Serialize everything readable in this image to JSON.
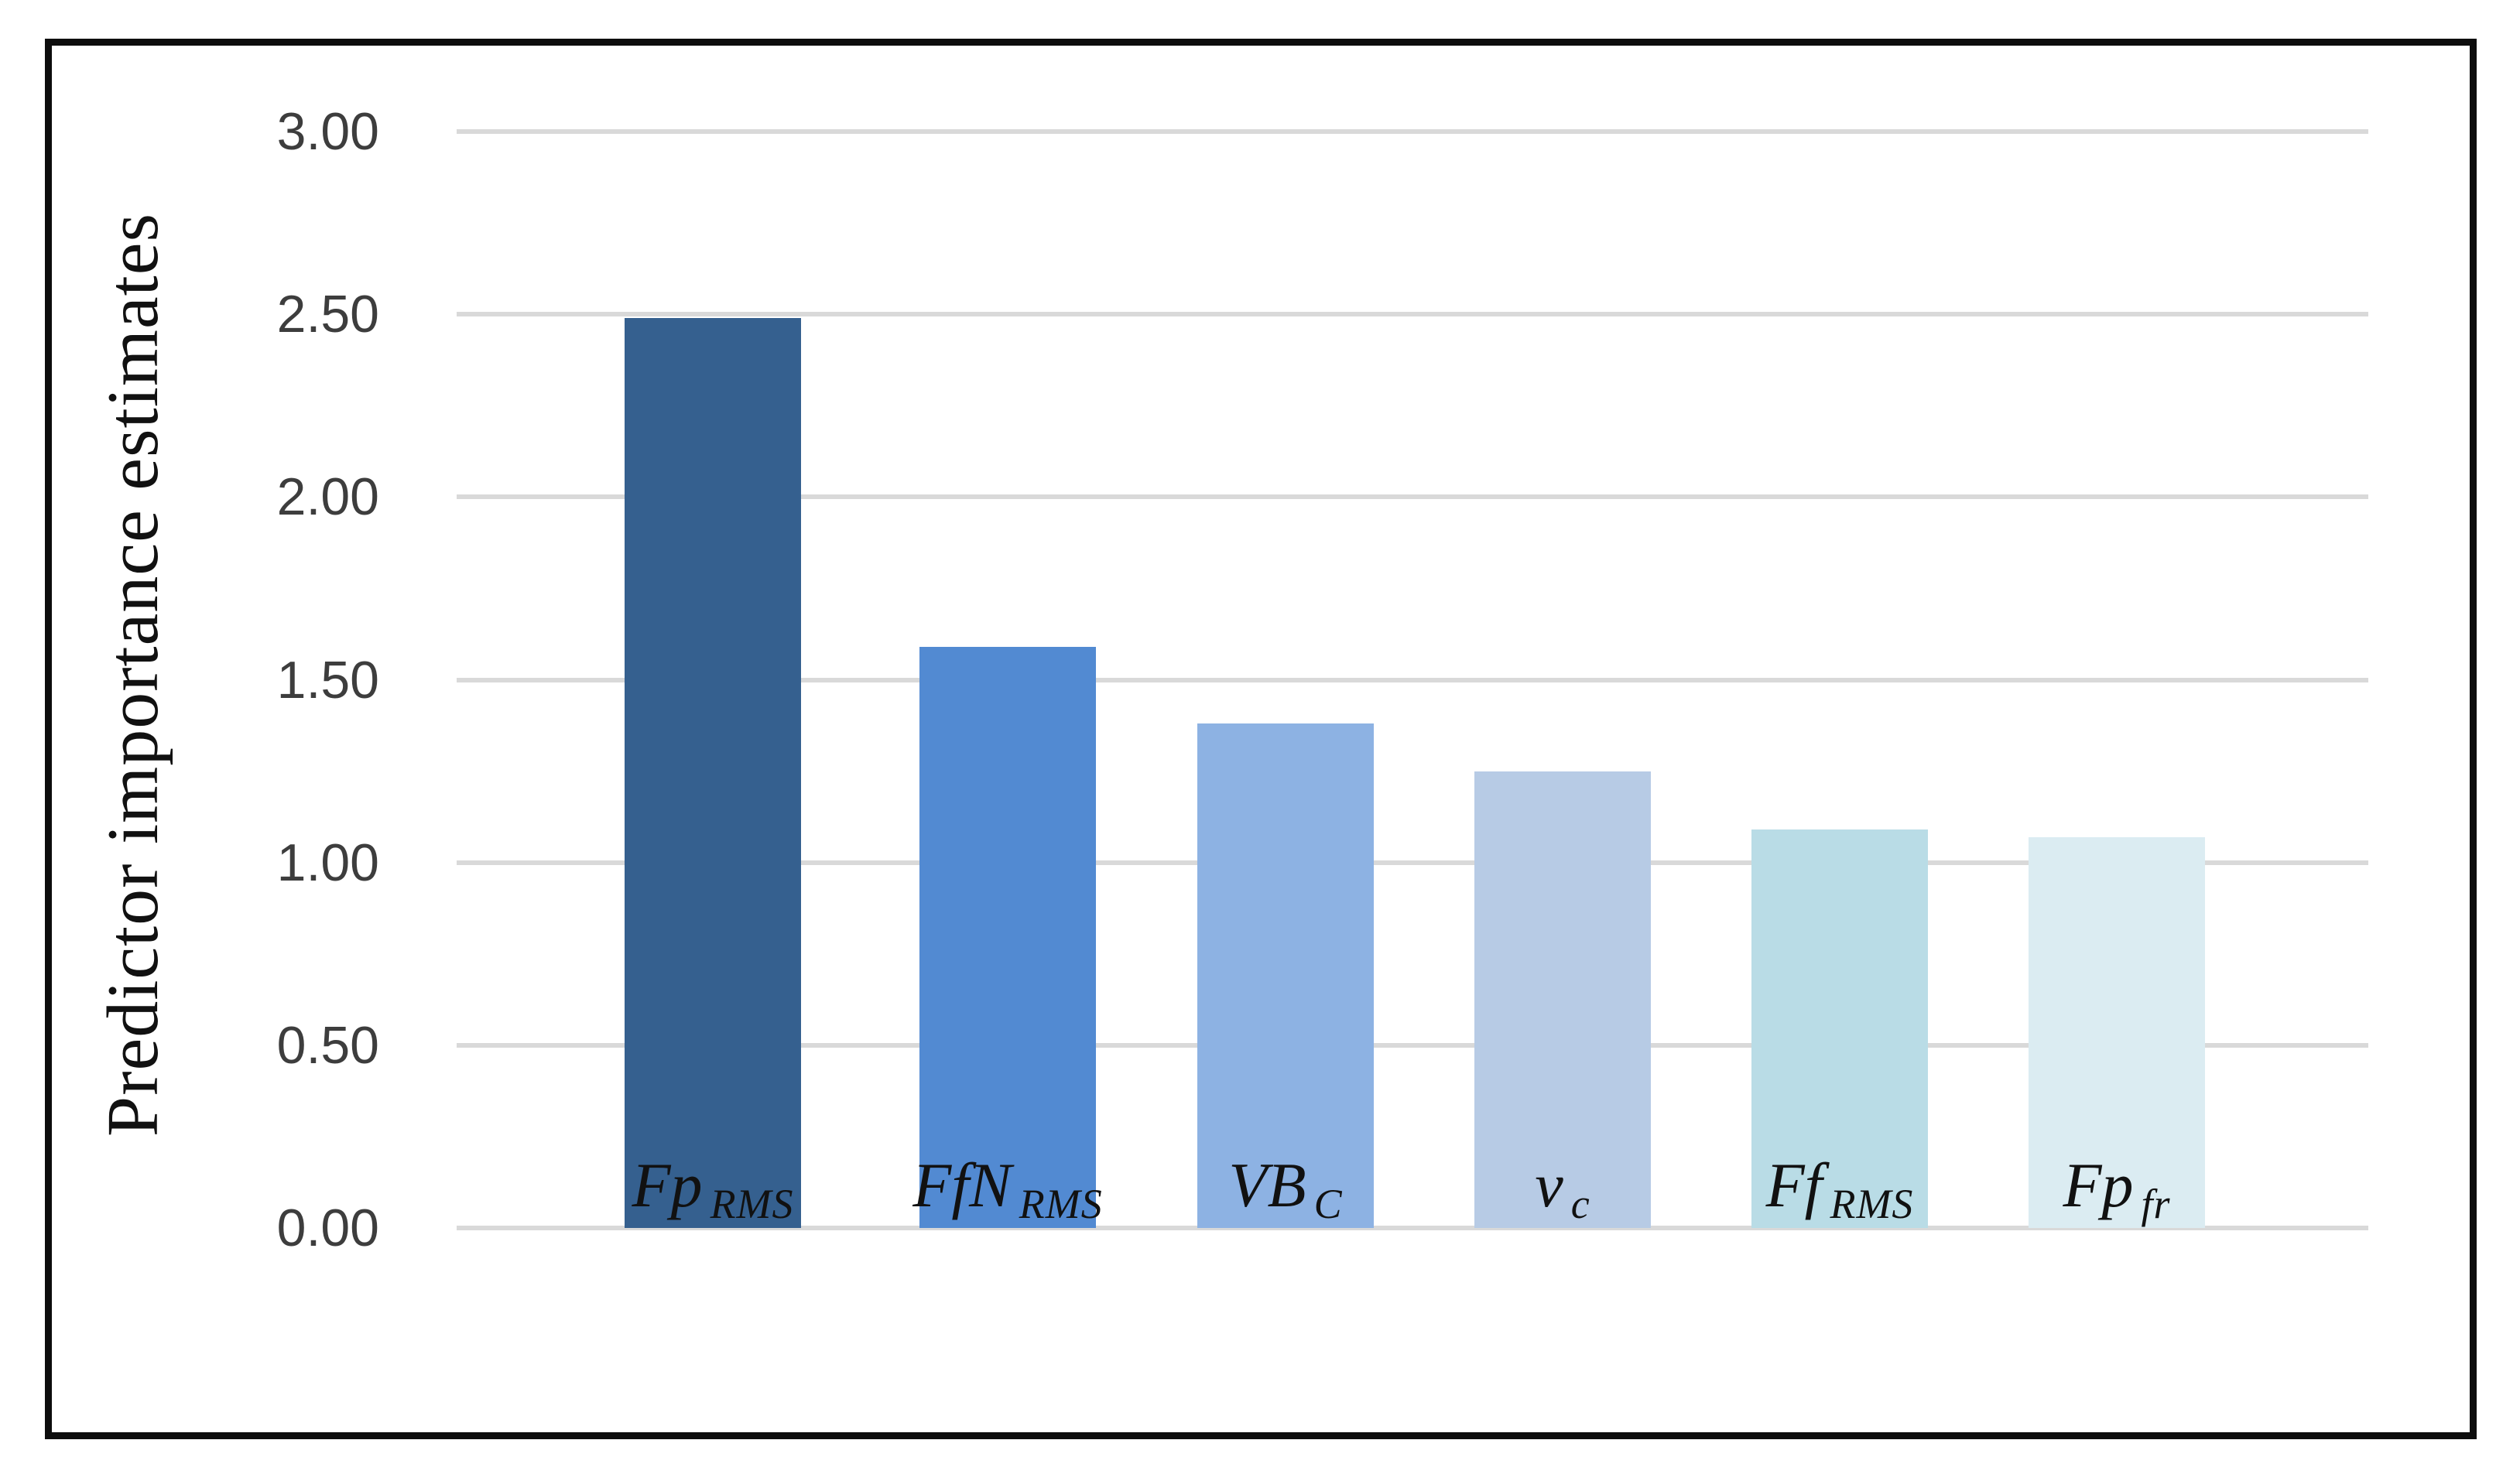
{
  "chart_data": {
    "type": "bar",
    "title": "",
    "xlabel": "",
    "ylabel": "Predictor importance estimates",
    "ylim": [
      0.0,
      3.0
    ],
    "ytick_step": 0.5,
    "ytick_labels": [
      "3.00",
      "2.50",
      "2.00",
      "1.50",
      "1.00",
      "0.50",
      "0.00"
    ],
    "grid": true,
    "legend_position": "none",
    "categories": [
      {
        "main": "Fp",
        "sub": "RMS"
      },
      {
        "main": "FfN",
        "sub": "RMS"
      },
      {
        "main": "VB",
        "sub": "C"
      },
      {
        "main": "v",
        "sub": "c"
      },
      {
        "main": "Ff",
        "sub": "RMS"
      },
      {
        "main": "Fp",
        "sub": "fr"
      }
    ],
    "values": [
      2.49,
      1.59,
      1.38,
      1.25,
      1.09,
      1.07
    ],
    "bar_colors": [
      "#35608F",
      "#528AD2",
      "#8DB2E3",
      "#B7CBE5",
      "#B9DCE6",
      "#DBECF2"
    ],
    "gridline_color": "#D9D9D9",
    "tick_label_color": "#3D3D3D",
    "frame_color": "#0D0D0D"
  }
}
